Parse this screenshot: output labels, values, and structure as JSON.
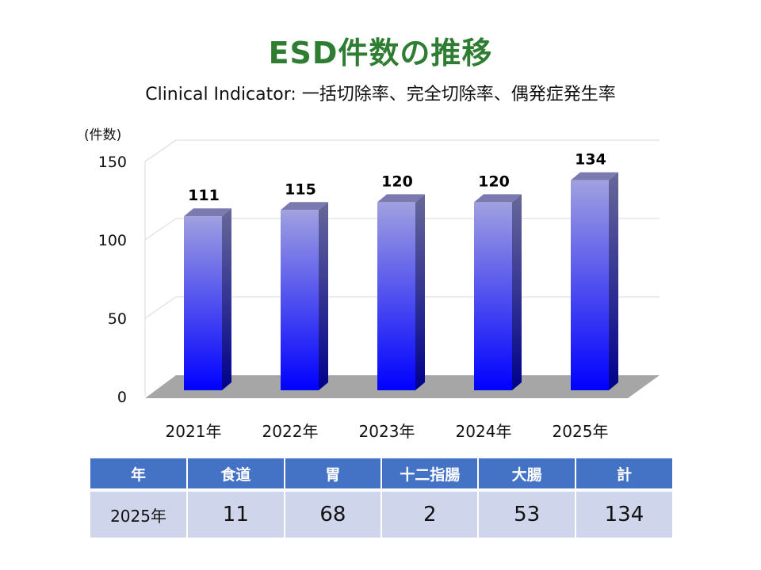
{
  "title": "ESD件数の推移",
  "subtitle": "Clinical Indicator: 一括切除率、完全切除率、偶発症発生率",
  "chart_data": {
    "type": "bar",
    "ylabel": "(件数)",
    "categories": [
      "2021年",
      "2022年",
      "2023年",
      "2024年",
      "2025年"
    ],
    "values": [
      111,
      115,
      120,
      120,
      134
    ],
    "data_labels": [
      "111",
      "115",
      "120",
      "120",
      "134"
    ],
    "yticks": [
      "0",
      "50",
      "100",
      "150"
    ],
    "ylim": [
      0,
      150
    ],
    "grid": true,
    "colors": {
      "bar_top": "#a0a0e0",
      "bar_bottom": "#0000ff",
      "floor": "#a6a6a6"
    }
  },
  "table": {
    "headers": [
      "年",
      "食道",
      "胃",
      "十二指腸",
      "大腸",
      "計"
    ],
    "rows": [
      [
        "2025年",
        "11",
        "68",
        "2",
        "53",
        "134"
      ]
    ]
  }
}
